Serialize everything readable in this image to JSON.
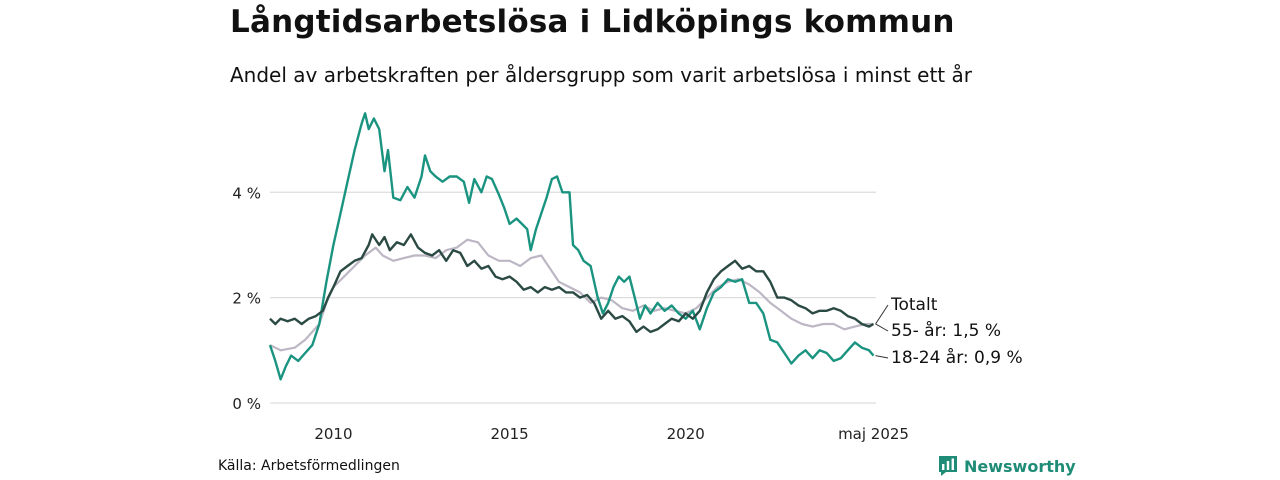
{
  "header": {
    "title": "Långtidsarbetslösa i Lidköpings kommun",
    "subtitle": "Andel av arbetskraften per åldersgrupp som varit arbetslösa i minst ett år"
  },
  "footer": {
    "source": "Källa: Arbetsförmedlingen",
    "brand": "Newsworthy",
    "brand_icon": "bar-chart-logo-icon"
  },
  "colors": {
    "young": "#1a9480",
    "total": "#2b4a44",
    "older": "#bdb6c4",
    "grid": "#dddddd",
    "brand": "#1e8c77"
  },
  "chart_data": {
    "type": "line",
    "x_unit": "year (decimal)",
    "xlim": [
      2008.2,
      2025.4
    ],
    "ylim": [
      0,
      5.6
    ],
    "y_ticks": [
      0,
      2,
      4
    ],
    "y_tick_labels": [
      "0 %",
      "2 %",
      "4 %"
    ],
    "x_ticks": [
      2010,
      2015,
      2020,
      2025.33
    ],
    "x_tick_labels": [
      "2010",
      "2015",
      "2020",
      "maj 2025"
    ],
    "grid": "horizontal",
    "end_labels": [
      "Totalt",
      "55- år: 1,5 %",
      "18-24 år: 0,9 %"
    ],
    "series": [
      {
        "key": "older",
        "end_label_index": 1,
        "points": [
          [
            2008.2,
            1.1
          ],
          [
            2008.5,
            1.0
          ],
          [
            2008.9,
            1.05
          ],
          [
            2009.2,
            1.2
          ],
          [
            2009.6,
            1.5
          ],
          [
            2009.8,
            1.9
          ],
          [
            2010.0,
            2.2
          ],
          [
            2010.3,
            2.4
          ],
          [
            2010.6,
            2.6
          ],
          [
            2010.9,
            2.8
          ],
          [
            2011.2,
            2.95
          ],
          [
            2011.4,
            2.8
          ],
          [
            2011.7,
            2.7
          ],
          [
            2012.0,
            2.75
          ],
          [
            2012.3,
            2.8
          ],
          [
            2012.6,
            2.8
          ],
          [
            2012.9,
            2.75
          ],
          [
            2013.2,
            2.9
          ],
          [
            2013.5,
            2.95
          ],
          [
            2013.8,
            3.1
          ],
          [
            2014.1,
            3.05
          ],
          [
            2014.4,
            2.8
          ],
          [
            2014.7,
            2.7
          ],
          [
            2015.0,
            2.7
          ],
          [
            2015.3,
            2.6
          ],
          [
            2015.6,
            2.75
          ],
          [
            2015.9,
            2.8
          ],
          [
            2016.1,
            2.6
          ],
          [
            2016.4,
            2.3
          ],
          [
            2016.7,
            2.2
          ],
          [
            2017.0,
            2.1
          ],
          [
            2017.3,
            1.9
          ],
          [
            2017.6,
            2.0
          ],
          [
            2017.9,
            1.95
          ],
          [
            2018.2,
            1.8
          ],
          [
            2018.5,
            1.75
          ],
          [
            2018.8,
            1.85
          ],
          [
            2019.1,
            1.75
          ],
          [
            2019.4,
            1.8
          ],
          [
            2019.7,
            1.75
          ],
          [
            2020.0,
            1.7
          ],
          [
            2020.3,
            1.8
          ],
          [
            2020.6,
            2.0
          ],
          [
            2020.9,
            2.2
          ],
          [
            2021.2,
            2.3
          ],
          [
            2021.5,
            2.35
          ],
          [
            2021.8,
            2.25
          ],
          [
            2022.1,
            2.1
          ],
          [
            2022.4,
            1.9
          ],
          [
            2022.7,
            1.75
          ],
          [
            2023.0,
            1.6
          ],
          [
            2023.3,
            1.5
          ],
          [
            2023.6,
            1.45
          ],
          [
            2023.9,
            1.5
          ],
          [
            2024.2,
            1.5
          ],
          [
            2024.5,
            1.4
          ],
          [
            2024.8,
            1.45
          ],
          [
            2025.1,
            1.5
          ],
          [
            2025.33,
            1.5
          ]
        ]
      },
      {
        "key": "young",
        "end_label_index": 2,
        "points": [
          [
            2008.2,
            1.1
          ],
          [
            2008.35,
            0.8
          ],
          [
            2008.5,
            0.45
          ],
          [
            2008.65,
            0.7
          ],
          [
            2008.8,
            0.9
          ],
          [
            2009.0,
            0.8
          ],
          [
            2009.2,
            0.95
          ],
          [
            2009.4,
            1.1
          ],
          [
            2009.6,
            1.5
          ],
          [
            2009.8,
            2.3
          ],
          [
            2010.0,
            3.0
          ],
          [
            2010.2,
            3.6
          ],
          [
            2010.4,
            4.2
          ],
          [
            2010.6,
            4.8
          ],
          [
            2010.8,
            5.3
          ],
          [
            2010.9,
            5.5
          ],
          [
            2011.0,
            5.2
          ],
          [
            2011.15,
            5.4
          ],
          [
            2011.3,
            5.2
          ],
          [
            2011.45,
            4.4
          ],
          [
            2011.55,
            4.8
          ],
          [
            2011.7,
            3.9
          ],
          [
            2011.9,
            3.85
          ],
          [
            2012.1,
            4.1
          ],
          [
            2012.3,
            3.9
          ],
          [
            2012.5,
            4.3
          ],
          [
            2012.6,
            4.7
          ],
          [
            2012.75,
            4.4
          ],
          [
            2012.9,
            4.3
          ],
          [
            2013.1,
            4.2
          ],
          [
            2013.3,
            4.3
          ],
          [
            2013.5,
            4.3
          ],
          [
            2013.7,
            4.2
          ],
          [
            2013.85,
            3.8
          ],
          [
            2014.0,
            4.25
          ],
          [
            2014.2,
            4.0
          ],
          [
            2014.35,
            4.3
          ],
          [
            2014.5,
            4.25
          ],
          [
            2014.7,
            3.95
          ],
          [
            2014.85,
            3.7
          ],
          [
            2015.0,
            3.4
          ],
          [
            2015.2,
            3.5
          ],
          [
            2015.35,
            3.4
          ],
          [
            2015.5,
            3.3
          ],
          [
            2015.6,
            2.9
          ],
          [
            2015.75,
            3.3
          ],
          [
            2015.9,
            3.6
          ],
          [
            2016.05,
            3.9
          ],
          [
            2016.2,
            4.25
          ],
          [
            2016.35,
            4.3
          ],
          [
            2016.5,
            4.0
          ],
          [
            2016.7,
            4.0
          ],
          [
            2016.8,
            3.0
          ],
          [
            2016.95,
            2.9
          ],
          [
            2017.1,
            2.7
          ],
          [
            2017.3,
            2.6
          ],
          [
            2017.5,
            2.0
          ],
          [
            2017.65,
            1.7
          ],
          [
            2017.8,
            1.9
          ],
          [
            2017.95,
            2.2
          ],
          [
            2018.1,
            2.4
          ],
          [
            2018.25,
            2.3
          ],
          [
            2018.4,
            2.4
          ],
          [
            2018.55,
            2.0
          ],
          [
            2018.7,
            1.6
          ],
          [
            2018.85,
            1.85
          ],
          [
            2019.0,
            1.7
          ],
          [
            2019.2,
            1.9
          ],
          [
            2019.4,
            1.75
          ],
          [
            2019.6,
            1.85
          ],
          [
            2019.8,
            1.7
          ],
          [
            2020.0,
            1.6
          ],
          [
            2020.2,
            1.75
          ],
          [
            2020.4,
            1.4
          ],
          [
            2020.6,
            1.8
          ],
          [
            2020.8,
            2.1
          ],
          [
            2021.0,
            2.2
          ],
          [
            2021.2,
            2.35
          ],
          [
            2021.4,
            2.3
          ],
          [
            2021.6,
            2.35
          ],
          [
            2021.8,
            1.9
          ],
          [
            2022.0,
            1.9
          ],
          [
            2022.2,
            1.7
          ],
          [
            2022.4,
            1.2
          ],
          [
            2022.6,
            1.15
          ],
          [
            2022.8,
            0.95
          ],
          [
            2023.0,
            0.75
          ],
          [
            2023.2,
            0.9
          ],
          [
            2023.4,
            1.0
          ],
          [
            2023.6,
            0.85
          ],
          [
            2023.8,
            1.0
          ],
          [
            2024.0,
            0.95
          ],
          [
            2024.2,
            0.8
          ],
          [
            2024.4,
            0.85
          ],
          [
            2024.6,
            1.0
          ],
          [
            2024.8,
            1.15
          ],
          [
            2025.0,
            1.05
          ],
          [
            2025.2,
            1.0
          ],
          [
            2025.33,
            0.9
          ]
        ]
      },
      {
        "key": "total",
        "end_label_index": 0,
        "points": [
          [
            2008.2,
            1.6
          ],
          [
            2008.35,
            1.5
          ],
          [
            2008.5,
            1.6
          ],
          [
            2008.7,
            1.55
          ],
          [
            2008.9,
            1.6
          ],
          [
            2009.1,
            1.5
          ],
          [
            2009.3,
            1.6
          ],
          [
            2009.5,
            1.65
          ],
          [
            2009.7,
            1.75
          ],
          [
            2009.85,
            2.0
          ],
          [
            2010.0,
            2.2
          ],
          [
            2010.2,
            2.5
          ],
          [
            2010.4,
            2.6
          ],
          [
            2010.6,
            2.7
          ],
          [
            2010.8,
            2.75
          ],
          [
            2011.0,
            3.0
          ],
          [
            2011.1,
            3.2
          ],
          [
            2011.3,
            3.0
          ],
          [
            2011.45,
            3.15
          ],
          [
            2011.6,
            2.9
          ],
          [
            2011.8,
            3.05
          ],
          [
            2012.0,
            3.0
          ],
          [
            2012.2,
            3.2
          ],
          [
            2012.4,
            2.95
          ],
          [
            2012.6,
            2.85
          ],
          [
            2012.8,
            2.8
          ],
          [
            2013.0,
            2.9
          ],
          [
            2013.2,
            2.7
          ],
          [
            2013.4,
            2.9
          ],
          [
            2013.6,
            2.85
          ],
          [
            2013.8,
            2.6
          ],
          [
            2014.0,
            2.7
          ],
          [
            2014.2,
            2.55
          ],
          [
            2014.4,
            2.6
          ],
          [
            2014.6,
            2.4
          ],
          [
            2014.8,
            2.35
          ],
          [
            2015.0,
            2.4
          ],
          [
            2015.2,
            2.3
          ],
          [
            2015.4,
            2.15
          ],
          [
            2015.6,
            2.2
          ],
          [
            2015.8,
            2.1
          ],
          [
            2016.0,
            2.2
          ],
          [
            2016.2,
            2.15
          ],
          [
            2016.4,
            2.2
          ],
          [
            2016.6,
            2.1
          ],
          [
            2016.8,
            2.1
          ],
          [
            2017.0,
            2.0
          ],
          [
            2017.2,
            2.05
          ],
          [
            2017.4,
            1.9
          ],
          [
            2017.6,
            1.6
          ],
          [
            2017.8,
            1.75
          ],
          [
            2018.0,
            1.6
          ],
          [
            2018.2,
            1.65
          ],
          [
            2018.4,
            1.55
          ],
          [
            2018.6,
            1.35
          ],
          [
            2018.8,
            1.45
          ],
          [
            2019.0,
            1.35
          ],
          [
            2019.2,
            1.4
          ],
          [
            2019.4,
            1.5
          ],
          [
            2019.6,
            1.6
          ],
          [
            2019.8,
            1.55
          ],
          [
            2020.0,
            1.7
          ],
          [
            2020.2,
            1.6
          ],
          [
            2020.4,
            1.75
          ],
          [
            2020.6,
            2.1
          ],
          [
            2020.8,
            2.35
          ],
          [
            2021.0,
            2.5
          ],
          [
            2021.2,
            2.6
          ],
          [
            2021.4,
            2.7
          ],
          [
            2021.6,
            2.55
          ],
          [
            2021.8,
            2.6
          ],
          [
            2022.0,
            2.5
          ],
          [
            2022.2,
            2.5
          ],
          [
            2022.4,
            2.3
          ],
          [
            2022.6,
            2.0
          ],
          [
            2022.8,
            2.0
          ],
          [
            2023.0,
            1.95
          ],
          [
            2023.2,
            1.85
          ],
          [
            2023.4,
            1.8
          ],
          [
            2023.6,
            1.7
          ],
          [
            2023.8,
            1.75
          ],
          [
            2024.0,
            1.75
          ],
          [
            2024.2,
            1.8
          ],
          [
            2024.4,
            1.75
          ],
          [
            2024.6,
            1.65
          ],
          [
            2024.8,
            1.6
          ],
          [
            2025.0,
            1.5
          ],
          [
            2025.2,
            1.45
          ],
          [
            2025.33,
            1.5
          ]
        ]
      }
    ]
  }
}
